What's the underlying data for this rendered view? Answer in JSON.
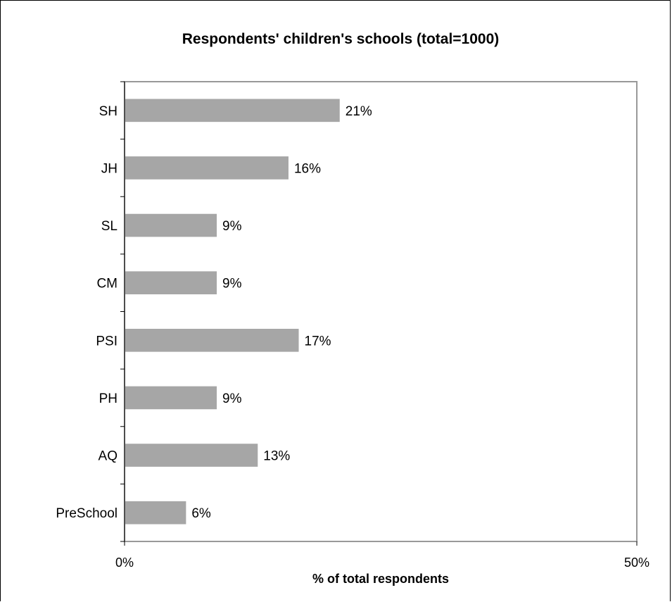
{
  "chart_data": {
    "type": "bar",
    "orientation": "horizontal",
    "title": "Respondents' children's schools (total=1000)",
    "xlabel": "% of total respondents",
    "ylabel": "",
    "categories": [
      "SH",
      "JH",
      "SL",
      "CM",
      "PSI",
      "PH",
      "AQ",
      "PreSchool"
    ],
    "values": [
      21,
      16,
      9,
      9,
      17,
      9,
      13,
      6
    ],
    "value_labels": [
      "21%",
      "16%",
      "9%",
      "9%",
      "17%",
      "9%",
      "13%",
      "6%"
    ],
    "xlim": [
      0,
      50
    ],
    "x_tick_labels": [
      "0%",
      "50%"
    ],
    "grid": false,
    "legend": "none",
    "bar_color": "#a6a6a6",
    "plot_border_color": "#999999"
  }
}
